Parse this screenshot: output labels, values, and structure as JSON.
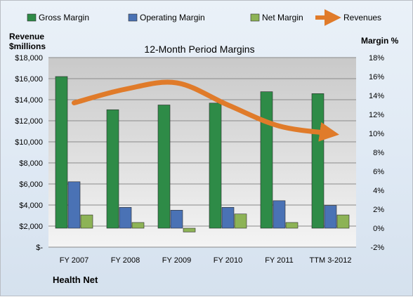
{
  "chart_data": {
    "type": "bar",
    "title": "12-Month Period Margins",
    "footer": "Health Net",
    "categories": [
      "FY 2007",
      "FY 2008",
      "FY 2009",
      "FY 2010",
      "FY 2011",
      "TTM 3-2012"
    ],
    "left_axis": {
      "label_line1": "Revenue",
      "label_line2": "$millions",
      "ylim": [
        0,
        18000
      ],
      "ticks": [
        0,
        2000,
        4000,
        6000,
        8000,
        10000,
        12000,
        14000,
        16000,
        18000
      ],
      "tick_labels": [
        "$-",
        "$2,000",
        "$4,000",
        "$6,000",
        "$8,000",
        "$10,000",
        "$12,000",
        "$14,000",
        "$16,000",
        "$18,000"
      ]
    },
    "right_axis": {
      "label": "Margin %",
      "ylim": [
        -2,
        18
      ],
      "ticks": [
        -2,
        0,
        2,
        4,
        6,
        8,
        10,
        12,
        14,
        16,
        18
      ],
      "tick_labels": [
        "-2%",
        "0%",
        "2%",
        "4%",
        "6%",
        "8%",
        "10%",
        "12%",
        "14%",
        "16%",
        "18%"
      ]
    },
    "series": [
      {
        "name": "Gross Margin",
        "axis": "right",
        "kind": "bar",
        "color": "#2e8b47",
        "values": [
          16.0,
          12.5,
          13.0,
          13.2,
          14.4,
          14.2
        ]
      },
      {
        "name": "Operating Margin",
        "axis": "right",
        "kind": "bar",
        "color": "#4a72b5",
        "values": [
          4.9,
          2.2,
          1.9,
          2.2,
          2.9,
          2.4
        ]
      },
      {
        "name": "Net Margin",
        "axis": "right",
        "kind": "bar",
        "color": "#8db356",
        "values": [
          1.4,
          0.6,
          -0.4,
          1.5,
          0.6,
          1.4
        ]
      },
      {
        "name": "Revenues",
        "axis": "left",
        "kind": "line",
        "color": "#e07b2a",
        "values": [
          13700,
          15000,
          15600,
          13500,
          11500,
          10800
        ]
      }
    ],
    "grid": true,
    "legend_position": "top"
  }
}
